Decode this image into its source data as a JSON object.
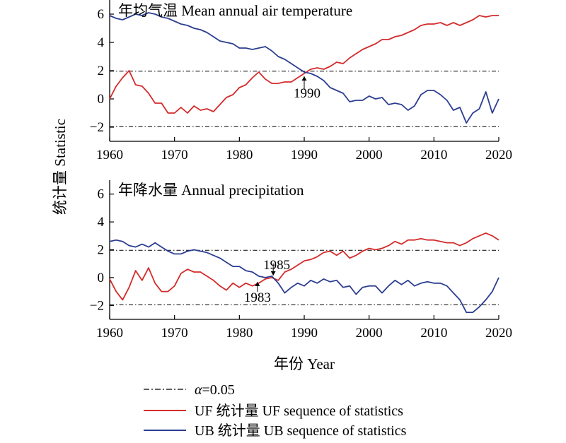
{
  "chart_data": {
    "type": "line",
    "ylabel": "统计量 Statistic",
    "xlabel": "年份 Year",
    "legend": {
      "placement": "bottom",
      "entries": [
        {
          "key": "alpha",
          "prefix": "α",
          "label": "=0.05",
          "style": "dash-dot",
          "color": "#000000"
        },
        {
          "key": "uf",
          "label": "UF 统计量 UF sequence of statistics",
          "color": "#d42b2b"
        },
        {
          "key": "ub",
          "label": "UB 统计量 UB sequence of statistics",
          "color": "#2c3e91"
        }
      ]
    },
    "panels": [
      {
        "title": "年均气温 Mean annual air temperature",
        "xlim": [
          1960,
          2020
        ],
        "ylim": [
          -3,
          7
        ],
        "xticks": [
          1960,
          1970,
          1980,
          1990,
          2000,
          2010,
          2020
        ],
        "yticks": [
          -2,
          0,
          2,
          4,
          6
        ],
        "reference_lines": [
          1.96,
          -1.96
        ],
        "annotations": [
          {
            "text": "1990",
            "x": 1990,
            "y": 1.9
          }
        ],
        "x": [
          1960,
          1961,
          1962,
          1963,
          1964,
          1965,
          1966,
          1967,
          1968,
          1969,
          1970,
          1971,
          1972,
          1973,
          1974,
          1975,
          1976,
          1977,
          1978,
          1979,
          1980,
          1981,
          1982,
          1983,
          1984,
          1985,
          1986,
          1987,
          1988,
          1989,
          1990,
          1991,
          1992,
          1993,
          1994,
          1995,
          1996,
          1997,
          1998,
          1999,
          2000,
          2001,
          2002,
          2003,
          2004,
          2005,
          2006,
          2007,
          2008,
          2009,
          2010,
          2011,
          2012,
          2013,
          2014,
          2015,
          2016,
          2017,
          2018,
          2019,
          2020
        ],
        "series": [
          {
            "name": "UF",
            "color": "#d42b2b",
            "values": [
              0.0,
              0.9,
              1.5,
              2.0,
              1.0,
              0.9,
              0.4,
              -0.3,
              -0.3,
              -1.0,
              -1.0,
              -0.6,
              -1.0,
              -0.5,
              -0.8,
              -0.7,
              -0.9,
              -0.4,
              0.1,
              0.3,
              0.8,
              1.0,
              1.5,
              1.9,
              1.4,
              1.1,
              1.1,
              1.2,
              1.2,
              1.5,
              1.8,
              2.1,
              2.2,
              2.1,
              2.3,
              2.6,
              2.5,
              2.9,
              3.2,
              3.5,
              3.7,
              3.9,
              4.2,
              4.2,
              4.4,
              4.5,
              4.7,
              4.9,
              5.2,
              5.3,
              5.3,
              5.4,
              5.2,
              5.4,
              5.2,
              5.4,
              5.6,
              5.9,
              5.8,
              5.9,
              5.9
            ]
          },
          {
            "name": "UB",
            "color": "#2c3e91",
            "values": [
              5.9,
              5.7,
              5.6,
              5.8,
              6.0,
              5.9,
              6.1,
              6.0,
              5.8,
              5.7,
              5.5,
              5.3,
              5.2,
              5.0,
              4.9,
              4.7,
              4.4,
              4.1,
              4.0,
              3.9,
              3.6,
              3.6,
              3.5,
              3.6,
              3.7,
              3.4,
              3.0,
              2.8,
              2.5,
              2.2,
              1.9,
              1.8,
              1.6,
              1.3,
              0.8,
              0.6,
              0.4,
              -0.2,
              -0.1,
              -0.1,
              0.2,
              0.0,
              0.1,
              -0.4,
              -0.3,
              -0.4,
              -0.8,
              -0.5,
              0.3,
              0.6,
              0.6,
              0.3,
              -0.1,
              -0.8,
              -0.6,
              -1.7,
              -1.0,
              -0.7,
              0.5,
              -1.0,
              0.0
            ]
          }
        ]
      },
      {
        "title": "年降水量 Annual precipitation",
        "xlim": [
          1960,
          2020
        ],
        "ylim": [
          -3,
          7
        ],
        "xticks": [
          1960,
          1970,
          1980,
          1990,
          2000,
          2010,
          2020
        ],
        "yticks": [
          -2,
          0,
          2,
          4,
          6
        ],
        "reference_lines": [
          1.96,
          -1.96
        ],
        "annotations": [
          {
            "text": "1985",
            "x": 1985,
            "y": 0.0
          },
          {
            "text": "1983",
            "x": 1983,
            "y": -0.1
          }
        ],
        "x": [
          1960,
          1961,
          1962,
          1963,
          1964,
          1965,
          1966,
          1967,
          1968,
          1969,
          1970,
          1971,
          1972,
          1973,
          1974,
          1975,
          1976,
          1977,
          1978,
          1979,
          1980,
          1981,
          1982,
          1983,
          1984,
          1985,
          1986,
          1987,
          1988,
          1989,
          1990,
          1991,
          1992,
          1993,
          1994,
          1995,
          1996,
          1997,
          1998,
          1999,
          2000,
          2001,
          2002,
          2003,
          2004,
          2005,
          2006,
          2007,
          2008,
          2009,
          2010,
          2011,
          2012,
          2013,
          2014,
          2015,
          2016,
          2017,
          2018,
          2019,
          2020
        ],
        "series": [
          {
            "name": "UF",
            "color": "#d42b2b",
            "values": [
              -0.1,
              -1.0,
              -1.6,
              -0.7,
              0.5,
              -0.2,
              0.7,
              -0.4,
              -1.0,
              -1.0,
              -0.6,
              0.3,
              0.6,
              0.4,
              0.4,
              0.1,
              -0.2,
              -0.6,
              -0.9,
              -0.4,
              -0.7,
              -0.4,
              -0.6,
              -0.4,
              -0.1,
              0.0,
              -0.2,
              0.4,
              0.6,
              0.9,
              1.2,
              1.3,
              1.5,
              1.8,
              1.9,
              1.6,
              1.9,
              1.4,
              1.6,
              1.9,
              2.1,
              2.0,
              2.1,
              2.3,
              2.6,
              2.4,
              2.7,
              2.7,
              2.8,
              2.7,
              2.7,
              2.6,
              2.5,
              2.5,
              2.3,
              2.5,
              2.8,
              3.0,
              3.2,
              3.0,
              2.7
            ]
          },
          {
            "name": "UB",
            "color": "#2c3e91",
            "values": [
              2.6,
              2.7,
              2.6,
              2.3,
              2.2,
              2.4,
              2.2,
              2.5,
              2.2,
              1.9,
              1.7,
              1.7,
              1.9,
              2.0,
              1.9,
              1.8,
              1.6,
              1.4,
              1.1,
              0.8,
              0.8,
              0.5,
              0.4,
              0.1,
              0.0,
              0.1,
              -0.4,
              -1.1,
              -0.7,
              -0.4,
              -0.6,
              -0.2,
              -0.4,
              -0.1,
              -0.3,
              -0.2,
              -0.7,
              -0.6,
              -1.2,
              -0.7,
              -0.6,
              -0.6,
              -1.1,
              -0.6,
              -0.2,
              -0.5,
              -0.2,
              -0.6,
              -0.4,
              -0.3,
              -0.4,
              -0.4,
              -0.6,
              -1.1,
              -1.6,
              -2.5,
              -2.5,
              -2.1,
              -1.6,
              -1.0,
              0.0
            ]
          }
        ]
      }
    ]
  }
}
